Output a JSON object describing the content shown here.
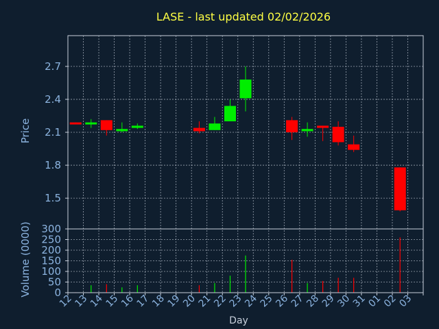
{
  "chart_data": {
    "type": "candlestick",
    "title": "LASE - last updated 02/02/2026",
    "xlabel": "Day",
    "days": [
      "12",
      "13",
      "14",
      "15",
      "16",
      "17",
      "18",
      "19",
      "20",
      "21",
      "22",
      "23",
      "24",
      "25",
      "26",
      "27",
      "28",
      "29",
      "30",
      "31",
      "01",
      "02",
      "03"
    ],
    "price_panel": {
      "ylabel": "Price",
      "yticks": [
        "2.7",
        "2.4",
        "2.1",
        "1.8",
        "1.5"
      ],
      "ylim": [
        1.22,
        2.98
      ],
      "candles": [
        {
          "day": "12",
          "open": 2.19,
          "high": 2.19,
          "low": 2.18,
          "close": 2.18
        },
        {
          "day": "13",
          "open": 2.18,
          "high": 2.22,
          "low": 2.14,
          "close": 2.19
        },
        {
          "day": "14",
          "open": 2.21,
          "high": 2.21,
          "low": 2.07,
          "close": 2.12
        },
        {
          "day": "15",
          "open": 2.11,
          "high": 2.19,
          "low": 2.1,
          "close": 2.13
        },
        {
          "day": "16",
          "open": 2.14,
          "high": 2.18,
          "low": 2.13,
          "close": 2.16
        },
        {
          "day": "20",
          "open": 2.14,
          "high": 2.2,
          "low": 2.09,
          "close": 2.11
        },
        {
          "day": "21",
          "open": 2.12,
          "high": 2.24,
          "low": 2.12,
          "close": 2.18
        },
        {
          "day": "22",
          "open": 2.2,
          "high": 2.4,
          "low": 2.2,
          "close": 2.34
        },
        {
          "day": "23",
          "open": 2.41,
          "high": 2.7,
          "low": 2.29,
          "close": 2.58
        },
        {
          "day": "26",
          "open": 2.21,
          "high": 2.24,
          "low": 2.03,
          "close": 2.1
        },
        {
          "day": "27",
          "open": 2.11,
          "high": 2.19,
          "low": 2.06,
          "close": 2.13
        },
        {
          "day": "28",
          "open": 2.16,
          "high": 2.16,
          "low": 2.02,
          "close": 2.14
        },
        {
          "day": "29",
          "open": 2.15,
          "high": 2.2,
          "low": 1.98,
          "close": 2.01
        },
        {
          "day": "30",
          "open": 1.99,
          "high": 2.07,
          "low": 1.92,
          "close": 1.94
        },
        {
          "day": "02",
          "open": 1.78,
          "high": 1.78,
          "low": 1.38,
          "close": 1.39
        }
      ]
    },
    "volume_panel": {
      "ylabel": "Volume (0000)",
      "yticks": [
        "300",
        "250",
        "200",
        "150",
        "100",
        "50",
        "0"
      ],
      "ylim": [
        0,
        300
      ],
      "bars": [
        {
          "day": "12",
          "value": 2,
          "color": "red"
        },
        {
          "day": "13",
          "value": 35,
          "color": "green"
        },
        {
          "day": "14",
          "value": 40,
          "color": "red"
        },
        {
          "day": "15",
          "value": 25,
          "color": "green"
        },
        {
          "day": "16",
          "value": 35,
          "color": "green"
        },
        {
          "day": "20",
          "value": 35,
          "color": "red"
        },
        {
          "day": "21",
          "value": 45,
          "color": "green"
        },
        {
          "day": "22",
          "value": 80,
          "color": "green"
        },
        {
          "day": "23",
          "value": 175,
          "color": "green"
        },
        {
          "day": "26",
          "value": 155,
          "color": "red"
        },
        {
          "day": "27",
          "value": 45,
          "color": "green"
        },
        {
          "day": "28",
          "value": 55,
          "color": "red"
        },
        {
          "day": "29",
          "value": 70,
          "color": "red"
        },
        {
          "day": "30",
          "value": 70,
          "color": "red"
        },
        {
          "day": "02",
          "value": 260,
          "color": "red"
        }
      ]
    },
    "grid": true,
    "colors": {
      "background": "#0f1e2e",
      "axis": "#c8d0dc",
      "tick_text": "#8cb4e0",
      "title": "#ffff44",
      "up": "#00ee00",
      "down": "#ff0000",
      "grid": "#c8d0dc"
    }
  }
}
